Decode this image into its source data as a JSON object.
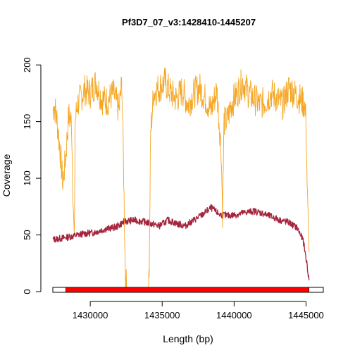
{
  "chart_data": {
    "type": "line",
    "title": "Pf3D7_07_v3:1428410-1445207",
    "xlabel": "Length (bp)",
    "ylabel": "Coverage",
    "xlim": [
      1427400,
      1446200
    ],
    "ylim": [
      0,
      220
    ],
    "x_ticks": [
      1430000,
      1435000,
      1440000,
      1445000
    ],
    "x_tick_labels": [
      "1430000",
      "1435000",
      "1440000",
      "1445000"
    ],
    "y_ticks": [
      0,
      50,
      100,
      150,
      200
    ],
    "y_tick_labels": [
      "0",
      "50",
      "100",
      "150",
      "200"
    ],
    "grid": false,
    "colors": {
      "series_orange": "#f5a623",
      "series_maroon": "#a4253e",
      "region": "#ff0000"
    },
    "series": [
      {
        "color": "orange",
        "x": [
          1427410,
          1427500,
          1427700,
          1427900,
          1428100,
          1428300,
          1428500,
          1428700,
          1428850,
          1428900,
          1428950,
          1429100,
          1429300,
          1429600,
          1430000,
          1430400,
          1430800,
          1431200,
          1431600,
          1432000,
          1432200,
          1432300,
          1432450,
          1432600,
          1432700,
          1433000,
          1433500,
          1434000,
          1434100,
          1434200,
          1434400,
          1434800,
          1435200,
          1435600,
          1436000,
          1436400,
          1436800,
          1437200,
          1437600,
          1438000,
          1438400,
          1438800,
          1439100,
          1439200,
          1439300,
          1439500,
          1439800,
          1440200,
          1440600,
          1441000,
          1441400,
          1441800,
          1442200,
          1442600,
          1443000,
          1443400,
          1443800,
          1444200,
          1444600,
          1444900,
          1445000,
          1445100,
          1445207
        ],
        "y": [
          160,
          165,
          150,
          125,
          95,
          120,
          155,
          150,
          60,
          40,
          150,
          165,
          170,
          178,
          175,
          185,
          170,
          168,
          175,
          160,
          185,
          120,
          10,
          0,
          0,
          0,
          0,
          0,
          20,
          140,
          175,
          180,
          185,
          175,
          170,
          178,
          165,
          175,
          180,
          170,
          160,
          178,
          125,
          70,
          150,
          150,
          165,
          175,
          185,
          175,
          170,
          165,
          168,
          175,
          170,
          165,
          180,
          175,
          170,
          165,
          150,
          80,
          35
        ]
      },
      {
        "color": "maroon",
        "x": [
          1427410,
          1428000,
          1428800,
          1429500,
          1430200,
          1431000,
          1431800,
          1432400,
          1433000,
          1433600,
          1434200,
          1434800,
          1435400,
          1436000,
          1436600,
          1437200,
          1437800,
          1438400,
          1439000,
          1439600,
          1440200,
          1440800,
          1441400,
          1442000,
          1442600,
          1443200,
          1443800,
          1444400,
          1444800,
          1445000,
          1445207
        ],
        "y": [
          46,
          47,
          49,
          51,
          52,
          55,
          57,
          62,
          63,
          62,
          60,
          58,
          63,
          60,
          58,
          63,
          68,
          74,
          68,
          67,
          68,
          70,
          71,
          69,
          66,
          63,
          61,
          56,
          45,
          30,
          10
        ]
      }
    ],
    "region": {
      "axis_band": [
        1427400,
        1446200
      ],
      "highlight": [
        1428300,
        1445207
      ]
    }
  }
}
